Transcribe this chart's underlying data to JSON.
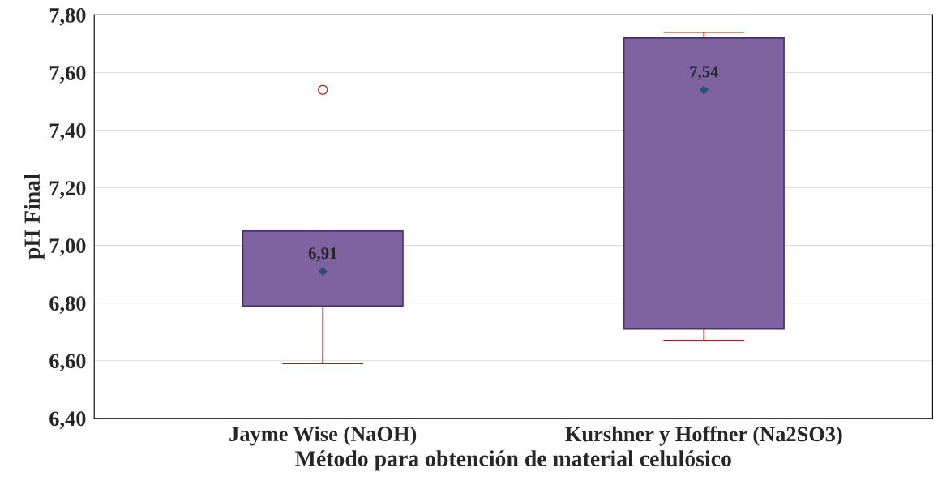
{
  "chart_data": {
    "type": "box",
    "xlabel": "Método para obtención de material celulósico",
    "ylabel": "pH Final",
    "categories": [
      "Jayme Wise (NaOH)",
      "Kurshner y Hoffner (Na2SO3)"
    ],
    "boxes": [
      {
        "low": 6.59,
        "q1": 6.79,
        "median": 6.91,
        "q3": 7.05,
        "high": 7.05,
        "outliers": [
          7.54
        ]
      },
      {
        "low": 6.67,
        "q1": 6.71,
        "median": 7.54,
        "q3": 7.72,
        "high": 7.74
      }
    ],
    "value_labels": [
      "6,91",
      "7,54"
    ],
    "color": "#7f63a0",
    "ylim": [
      6.4,
      7.8
    ],
    "yticks": [
      {
        "value": 6.4,
        "label": "6,40"
      },
      {
        "value": 6.6,
        "label": "6,60"
      },
      {
        "value": 6.8,
        "label": "6,80"
      },
      {
        "value": 7.0,
        "label": "7,00"
      },
      {
        "value": 7.2,
        "label": "7,20"
      },
      {
        "value": 7.4,
        "label": "7,40"
      },
      {
        "value": 7.6,
        "label": "7,60"
      },
      {
        "value": 7.8,
        "label": "7,80"
      }
    ],
    "grid": "y",
    "marker": "diamond"
  }
}
